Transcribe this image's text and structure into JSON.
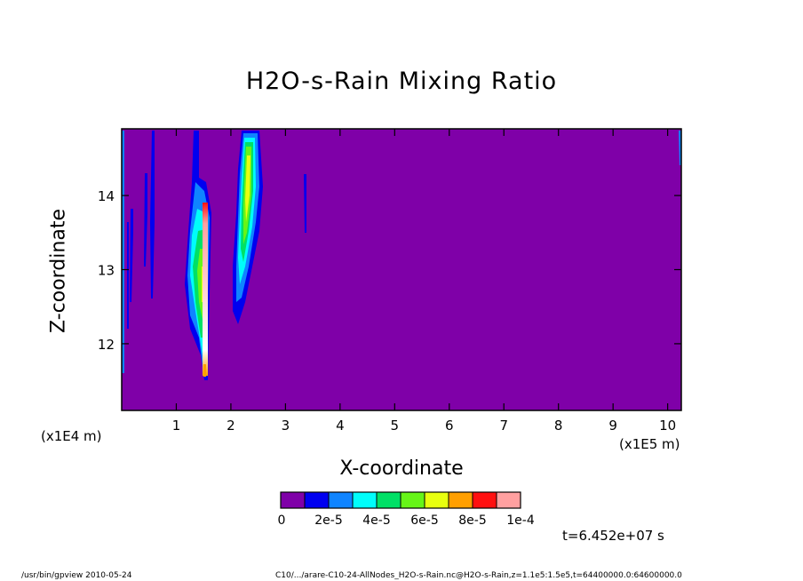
{
  "chart_data": {
    "type": "heatmap",
    "title": "H2O-s-Rain Mixing Ratio",
    "xlabel": "X-coordinate",
    "ylabel": "Z-coordinate",
    "x_unit": "(x1E5 m)",
    "y_unit": "(x1E4 m)",
    "x_ticks": [
      1,
      2,
      3,
      4,
      5,
      6,
      7,
      8,
      9,
      10
    ],
    "y_ticks": [
      12,
      13,
      14
    ],
    "xlim": [
      0,
      10.25
    ],
    "ylim": [
      11.1,
      14.9
    ],
    "colorbar": {
      "colors": [
        "#7f00a8",
        "#0000f0",
        "#0f84ff",
        "#00fdfa",
        "#00e066",
        "#66f518",
        "#e8ff0f",
        "#ff9f00",
        "#ff1010",
        "#ffa0a0"
      ],
      "tick_labels": [
        "0",
        "2e-5",
        "4e-5",
        "6e-5",
        "8e-5",
        "1e-4"
      ]
    },
    "plumes": [
      {
        "x": 0.58,
        "x_width": 0.06,
        "z_bottom": 12.6,
        "z_top": 14.9,
        "peak_level": 1
      },
      {
        "x": 1.52,
        "x_width": 0.45,
        "z_bottom": 11.55,
        "z_top": 14.9,
        "peak_level": 9
      },
      {
        "x": 2.25,
        "x_width": 0.55,
        "z_bottom": 12.3,
        "z_top": 14.9,
        "peak_level": 6
      },
      {
        "x": 3.38,
        "x_width": 0.04,
        "z_bottom": 13.5,
        "z_top": 14.3,
        "peak_level": 1
      }
    ]
  },
  "time_label": "t=6.452e+07 s",
  "footer": {
    "left": "/usr/bin/gpview   2010-05-24",
    "right": "C10/.../arare-C10-24-AllNodes_H2O-s-Rain.nc@H2O-s-Rain,z=1.1e5:1.5e5,t=64400000.0:64600000.0"
  }
}
